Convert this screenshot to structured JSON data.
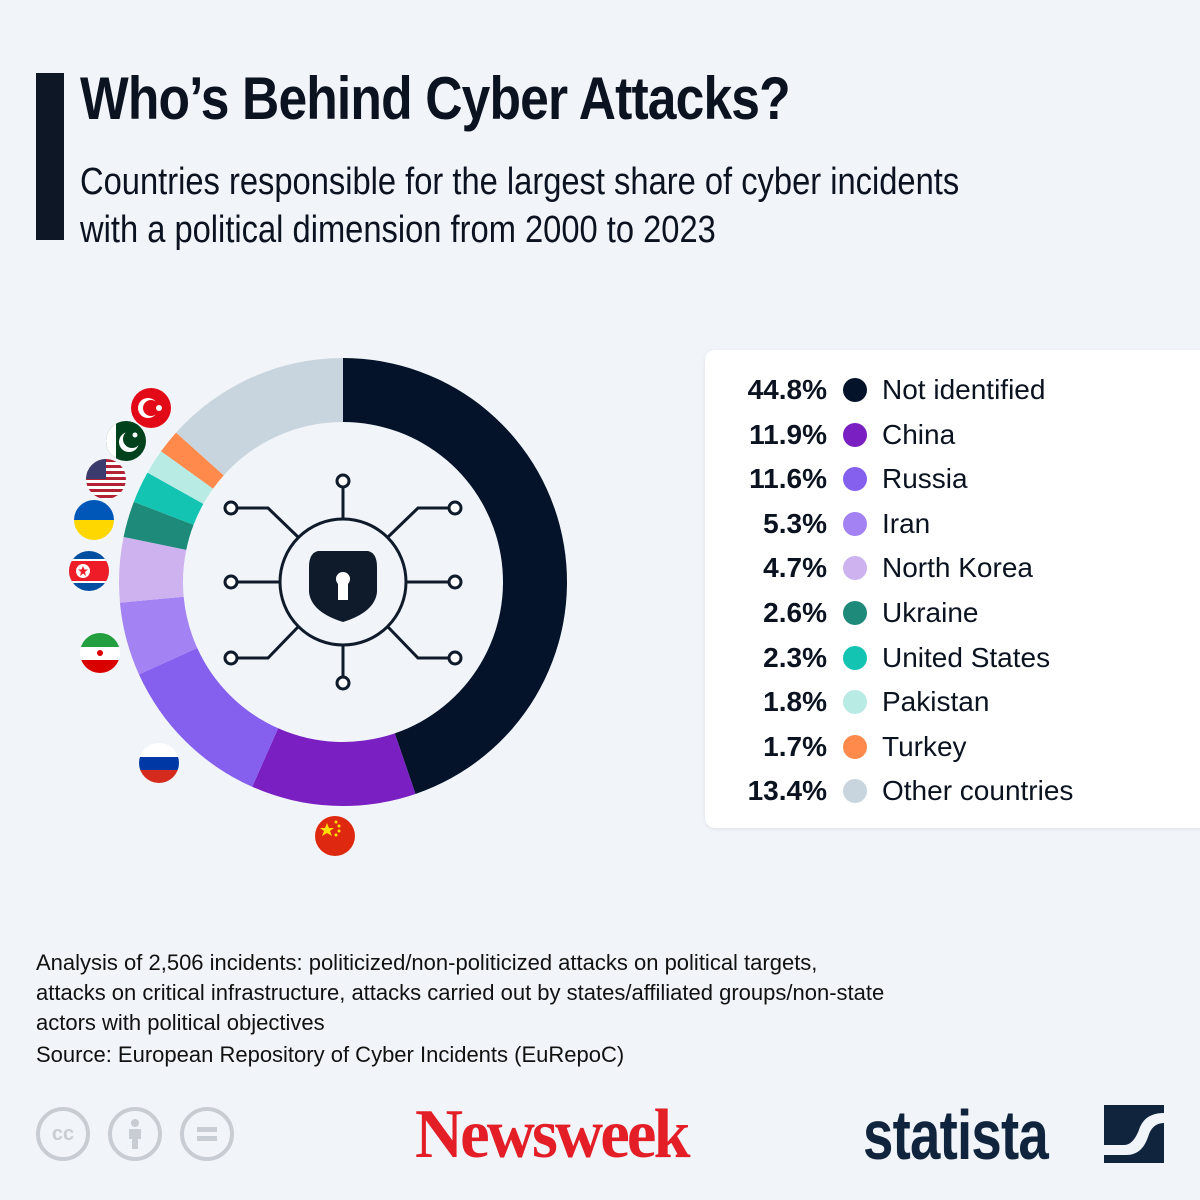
{
  "header": {
    "title": "Who’s Behind Cyber Attacks?",
    "subtitle_line1": "Countries responsible for the largest share of cyber incidents",
    "subtitle_line2": "with a political dimension from 2000 to 2023"
  },
  "chart_data": {
    "type": "pie",
    "variant": "donut",
    "start": "top",
    "direction": "clockwise",
    "unit": "%",
    "slices": [
      {
        "label": "Not identified",
        "value": 44.8,
        "display": "44.8%",
        "color": "#04132a",
        "flag": null
      },
      {
        "label": "China",
        "value": 11.9,
        "display": "11.9%",
        "color": "#7a1fc2",
        "flag": "china-flag"
      },
      {
        "label": "Russia",
        "value": 11.6,
        "display": "11.6%",
        "color": "#8560ef",
        "flag": "russia-flag"
      },
      {
        "label": "Iran",
        "value": 5.3,
        "display": "5.3%",
        "color": "#a382f3",
        "flag": "iran-flag"
      },
      {
        "label": "North Korea",
        "value": 4.7,
        "display": "4.7%",
        "color": "#cdb2ef",
        "flag": "north-korea-flag"
      },
      {
        "label": "Ukraine",
        "value": 2.6,
        "display": "2.6%",
        "color": "#1e8a7a",
        "flag": "ukraine-flag"
      },
      {
        "label": "United States",
        "value": 2.3,
        "display": "2.3%",
        "color": "#14c4b2",
        "flag": "us-flag"
      },
      {
        "label": "Pakistan",
        "value": 1.8,
        "display": "1.8%",
        "color": "#b8ebe4",
        "flag": "pakistan-flag"
      },
      {
        "label": "Turkey",
        "value": 1.7,
        "display": "1.7%",
        "color": "#ff8a4c",
        "flag": "turkey-flag"
      },
      {
        "label": "Other countries",
        "value": 13.4,
        "display": "13.4%",
        "color": "#c9d5de",
        "flag": null
      }
    ],
    "legend_placement": "right",
    "center_icon": "shield-keyhole-network-icon"
  },
  "footer": {
    "note_line1": "Analysis of 2,506 incidents: politicized/non-politicized attacks on political targets,",
    "note_line2": "attacks on critical infrastructure, attacks carried out by states/affiliated groups/non-state",
    "note_line3": "actors with political objectives",
    "source": "Source: European Repository of Cyber Incidents (EuRepoC)",
    "license_icons": [
      "cc",
      "by",
      "nd"
    ],
    "license_cc": "cc",
    "logo_newsweek": "Newsweek",
    "logo_statista": "statista"
  }
}
